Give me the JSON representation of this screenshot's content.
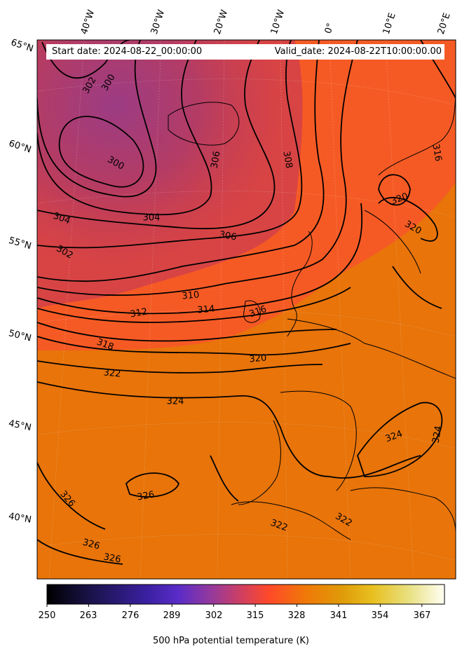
{
  "header": {
    "start_date": "Start date: 2024-08-22_00:00:00",
    "valid_date": "Valid_date: 2024-08-22T10:00:00.00"
  },
  "axes": {
    "longitude_labels": [
      "40°W",
      "30°W",
      "20°W",
      "10°W",
      "0°",
      "10°E",
      "20°E"
    ],
    "latitude_labels": [
      "65°N",
      "60°N",
      "55°N",
      "50°N",
      "45°N",
      "40°N"
    ]
  },
  "contours": {
    "labels": [
      "300",
      "300",
      "302",
      "302",
      "304",
      "304",
      "306",
      "306",
      "308",
      "310",
      "312",
      "314",
      "316",
      "316",
      "318",
      "320",
      "320",
      "320",
      "322",
      "322",
      "322",
      "324",
      "324",
      "324",
      "326",
      "326",
      "326",
      "326"
    ]
  },
  "colorbar": {
    "ticks": [
      "250",
      "263",
      "276",
      "289",
      "302",
      "315",
      "328",
      "341",
      "354",
      "367"
    ],
    "label": "500 hPa potential temperature (K)",
    "colors": [
      "#000000",
      "#2a1a6e",
      "#4a28c8",
      "#8a3aa8",
      "#c04070",
      "#ff4030",
      "#f07a08",
      "#e8b010",
      "#e8d860",
      "#fffff0"
    ]
  }
}
